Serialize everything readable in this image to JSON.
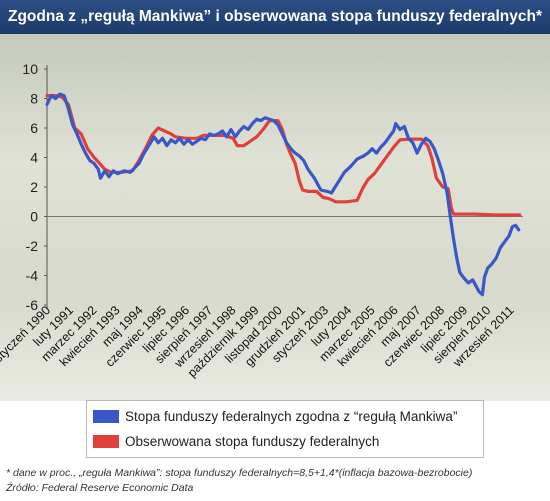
{
  "title": "Zgodna z „regułą Mankiwa” i obserwowana stopa funduszy federalnych*",
  "footnotes": {
    "definition": "* dane w proc., „reguła Mankiwa”: stopa funduszy federalnych=8,5+1,4*(inflacja bazowa-bezrobocie)",
    "source": "Źródło: Federal Reserve Economic Data"
  },
  "colors": {
    "header": "#23457a",
    "mankiw": "#3a57c8",
    "observed": "#e0403c"
  },
  "chart_data": {
    "type": "line",
    "title": "Zgodna z „regułą Mankiwa” i obserwowana stopa funduszy federalnych*",
    "xlabel": "",
    "ylabel": "",
    "ylim": [
      -6,
      10
    ],
    "xlim": [
      1990.0,
      2012.25
    ],
    "y_ticks": [
      10,
      8,
      6,
      4,
      2,
      0,
      -2,
      -4,
      -6
    ],
    "x_ticks": [
      {
        "label": "styczeń 1990",
        "x": 1990.0
      },
      {
        "label": "luty 1991",
        "x": 1991.08
      },
      {
        "label": "marzec 1992",
        "x": 1992.17
      },
      {
        "label": "kwiecień 1993",
        "x": 1993.25
      },
      {
        "label": "maj 1994",
        "x": 1994.33
      },
      {
        "label": "czerwiec 1995",
        "x": 1995.42
      },
      {
        "label": "lipiec 1996",
        "x": 1996.5
      },
      {
        "label": "sierpień 1997",
        "x": 1997.58
      },
      {
        "label": "wrzesień 1998",
        "x": 1998.67
      },
      {
        "label": "październik 1999",
        "x": 1999.75
      },
      {
        "label": "listopad 2000",
        "x": 2000.83
      },
      {
        "label": "grudzień 2001",
        "x": 2001.92
      },
      {
        "label": "styczeń 2003",
        "x": 2003.0
      },
      {
        "label": "luty 2004",
        "x": 2004.08
      },
      {
        "label": "marzec 2005",
        "x": 2005.17
      },
      {
        "label": "kwiecień 2006",
        "x": 2006.25
      },
      {
        "label": "maj 2007",
        "x": 2007.33
      },
      {
        "label": "czerwiec 2008",
        "x": 2008.42
      },
      {
        "label": "lipiec 2009",
        "x": 2009.5
      },
      {
        "label": "sierpień 2010",
        "x": 2010.58
      },
      {
        "label": "wrzesień 2011",
        "x": 2011.67
      }
    ],
    "grid": false,
    "legend_position": "bottom",
    "series": [
      {
        "name": "Stopa funduszy federalnych zgodna z “regułą Mankiwa”",
        "color": "#3a57c8",
        "points": [
          [
            1990.0,
            7.6
          ],
          [
            1990.2,
            8.2
          ],
          [
            1990.4,
            8.0
          ],
          [
            1990.6,
            8.3
          ],
          [
            1990.8,
            8.2
          ],
          [
            1991.0,
            7.3
          ],
          [
            1991.2,
            6.2
          ],
          [
            1991.4,
            5.6
          ],
          [
            1991.6,
            4.9
          ],
          [
            1991.8,
            4.3
          ],
          [
            1992.0,
            3.8
          ],
          [
            1992.2,
            3.6
          ],
          [
            1992.4,
            3.2
          ],
          [
            1992.5,
            2.6
          ],
          [
            1992.7,
            3.1
          ],
          [
            1992.9,
            2.7
          ],
          [
            1993.1,
            3.1
          ],
          [
            1993.3,
            2.9
          ],
          [
            1993.6,
            3.1
          ],
          [
            1993.9,
            3.0
          ],
          [
            1994.1,
            3.3
          ],
          [
            1994.3,
            3.6
          ],
          [
            1994.5,
            4.2
          ],
          [
            1994.8,
            4.9
          ],
          [
            1995.0,
            5.4
          ],
          [
            1995.2,
            5.0
          ],
          [
            1995.4,
            5.3
          ],
          [
            1995.6,
            4.8
          ],
          [
            1995.8,
            5.2
          ],
          [
            1996.0,
            5.0
          ],
          [
            1996.2,
            5.3
          ],
          [
            1996.4,
            4.9
          ],
          [
            1996.6,
            5.2
          ],
          [
            1996.8,
            4.9
          ],
          [
            1997.0,
            5.1
          ],
          [
            1997.2,
            5.3
          ],
          [
            1997.4,
            5.2
          ],
          [
            1997.6,
            5.6
          ],
          [
            1997.8,
            5.5
          ],
          [
            1998.0,
            5.6
          ],
          [
            1998.2,
            5.8
          ],
          [
            1998.4,
            5.4
          ],
          [
            1998.6,
            5.9
          ],
          [
            1998.8,
            5.4
          ],
          [
            1999.0,
            5.8
          ],
          [
            1999.2,
            6.1
          ],
          [
            1999.4,
            5.9
          ],
          [
            1999.6,
            6.3
          ],
          [
            1999.8,
            6.6
          ],
          [
            2000.0,
            6.5
          ],
          [
            2000.2,
            6.7
          ],
          [
            2000.4,
            6.6
          ],
          [
            2000.6,
            6.5
          ],
          [
            2000.8,
            6.2
          ],
          [
            2001.0,
            5.6
          ],
          [
            2001.2,
            5.0
          ],
          [
            2001.4,
            4.6
          ],
          [
            2001.6,
            4.3
          ],
          [
            2001.8,
            4.1
          ],
          [
            2002.0,
            3.8
          ],
          [
            2002.2,
            3.2
          ],
          [
            2002.5,
            2.6
          ],
          [
            2002.8,
            1.8
          ],
          [
            2003.1,
            1.7
          ],
          [
            2003.3,
            1.6
          ],
          [
            2003.6,
            2.3
          ],
          [
            2003.9,
            3.0
          ],
          [
            2004.2,
            3.4
          ],
          [
            2004.5,
            3.9
          ],
          [
            2004.8,
            4.1
          ],
          [
            2005.0,
            4.3
          ],
          [
            2005.2,
            4.6
          ],
          [
            2005.4,
            4.3
          ],
          [
            2005.6,
            4.7
          ],
          [
            2005.8,
            5.0
          ],
          [
            2006.0,
            5.4
          ],
          [
            2006.2,
            5.8
          ],
          [
            2006.3,
            6.3
          ],
          [
            2006.5,
            5.9
          ],
          [
            2006.7,
            6.1
          ],
          [
            2006.9,
            5.3
          ],
          [
            2007.1,
            5.0
          ],
          [
            2007.3,
            4.3
          ],
          [
            2007.5,
            4.9
          ],
          [
            2007.7,
            5.3
          ],
          [
            2007.9,
            5.1
          ],
          [
            2008.1,
            4.6
          ],
          [
            2008.3,
            3.8
          ],
          [
            2008.5,
            2.9
          ],
          [
            2008.7,
            1.6
          ],
          [
            2008.85,
            0.0
          ],
          [
            2009.0,
            -1.5
          ],
          [
            2009.15,
            -2.8
          ],
          [
            2009.3,
            -3.8
          ],
          [
            2009.5,
            -4.2
          ],
          [
            2009.7,
            -4.5
          ],
          [
            2009.9,
            -4.3
          ],
          [
            2010.05,
            -4.7
          ],
          [
            2010.2,
            -5.1
          ],
          [
            2010.35,
            -5.3
          ],
          [
            2010.45,
            -4.1
          ],
          [
            2010.6,
            -3.5
          ],
          [
            2010.8,
            -3.2
          ],
          [
            2011.0,
            -2.8
          ],
          [
            2011.2,
            -2.1
          ],
          [
            2011.4,
            -1.7
          ],
          [
            2011.6,
            -1.3
          ],
          [
            2011.75,
            -0.7
          ],
          [
            2011.9,
            -0.6
          ],
          [
            2012.05,
            -0.9
          ]
        ]
      },
      {
        "name": "Obserwowana stopa funduszy federalnych",
        "color": "#e0403c",
        "points": [
          [
            1990.0,
            8.2
          ],
          [
            1990.4,
            8.2
          ],
          [
            1990.7,
            8.1
          ],
          [
            1991.0,
            7.6
          ],
          [
            1991.3,
            6.0
          ],
          [
            1991.6,
            5.6
          ],
          [
            1991.9,
            4.6
          ],
          [
            1992.2,
            4.0
          ],
          [
            1992.4,
            3.7
          ],
          [
            1992.7,
            3.2
          ],
          [
            1993.0,
            3.0
          ],
          [
            1993.5,
            3.0
          ],
          [
            1994.0,
            3.1
          ],
          [
            1994.3,
            3.8
          ],
          [
            1994.6,
            4.6
          ],
          [
            1994.9,
            5.5
          ],
          [
            1995.2,
            6.0
          ],
          [
            1995.5,
            5.8
          ],
          [
            1995.8,
            5.6
          ],
          [
            1996.0,
            5.4
          ],
          [
            1996.5,
            5.3
          ],
          [
            1997.0,
            5.3
          ],
          [
            1997.3,
            5.5
          ],
          [
            1997.8,
            5.5
          ],
          [
            1998.3,
            5.5
          ],
          [
            1998.7,
            5.3
          ],
          [
            1998.9,
            4.8
          ],
          [
            1999.2,
            4.8
          ],
          [
            1999.5,
            5.1
          ],
          [
            1999.8,
            5.4
          ],
          [
            2000.1,
            5.9
          ],
          [
            2000.4,
            6.5
          ],
          [
            2000.8,
            6.5
          ],
          [
            2001.0,
            5.9
          ],
          [
            2001.2,
            4.9
          ],
          [
            2001.4,
            4.2
          ],
          [
            2001.6,
            3.6
          ],
          [
            2001.8,
            2.4
          ],
          [
            2001.95,
            1.8
          ],
          [
            2002.2,
            1.7
          ],
          [
            2002.6,
            1.7
          ],
          [
            2002.9,
            1.3
          ],
          [
            2003.2,
            1.2
          ],
          [
            2003.5,
            1.0
          ],
          [
            2004.0,
            1.0
          ],
          [
            2004.5,
            1.1
          ],
          [
            2004.75,
            1.9
          ],
          [
            2005.0,
            2.5
          ],
          [
            2005.3,
            2.9
          ],
          [
            2005.6,
            3.5
          ],
          [
            2005.9,
            4.1
          ],
          [
            2006.2,
            4.7
          ],
          [
            2006.5,
            5.2
          ],
          [
            2007.0,
            5.25
          ],
          [
            2007.5,
            5.25
          ],
          [
            2007.8,
            4.8
          ],
          [
            2008.0,
            3.9
          ],
          [
            2008.2,
            2.6
          ],
          [
            2008.5,
            2.0
          ],
          [
            2008.75,
            1.9
          ],
          [
            2008.9,
            0.6
          ],
          [
            2009.0,
            0.16
          ],
          [
            2010.0,
            0.16
          ],
          [
            2011.0,
            0.1
          ],
          [
            2011.9,
            0.1
          ],
          [
            2012.1,
            0.1
          ]
        ]
      }
    ]
  }
}
